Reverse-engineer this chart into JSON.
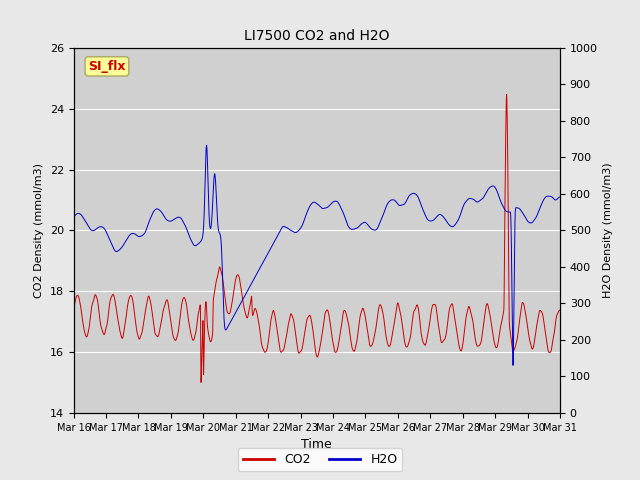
{
  "title": "LI7500 CO2 and H2O",
  "xlabel": "Time",
  "ylabel_left": "CO2 Density (mmol/m3)",
  "ylabel_right": "H2O Density (mmol/m3)",
  "ylim_left": [
    14,
    26
  ],
  "ylim_right": [
    0,
    1000
  ],
  "yticks_left": [
    14,
    16,
    18,
    20,
    22,
    24,
    26
  ],
  "yticks_right": [
    0,
    100,
    200,
    300,
    400,
    500,
    600,
    700,
    800,
    900,
    1000
  ],
  "co2_color": "#cc0000",
  "h2o_color": "#0000cc",
  "background_color": "#e8e8e8",
  "plot_bg_color": "#d0d0d0",
  "annotation_text": "SI_flx",
  "annotation_color": "#cc0000",
  "annotation_bg": "#ffff99",
  "legend_co2": "CO2",
  "legend_h2o": "H2O",
  "grid_color": "#ffffff",
  "n_points": 5000,
  "time_start": 0,
  "time_end": 15,
  "xtick_labels": [
    "Mar 16",
    "Mar 17",
    "Mar 18",
    "Mar 19",
    "Mar 20",
    "Mar 21",
    "Mar 22",
    "Mar 23",
    "Mar 24",
    "Mar 25",
    "Mar 26",
    "Mar 27",
    "Mar 28",
    "Mar 29",
    "Mar 30",
    "Mar 31"
  ],
  "xtick_positions": [
    0,
    1,
    2,
    3,
    4,
    5,
    6,
    7,
    8,
    9,
    10,
    11,
    12,
    13,
    14,
    15
  ]
}
